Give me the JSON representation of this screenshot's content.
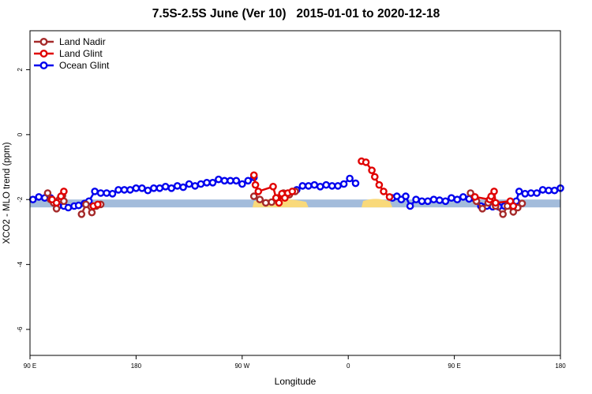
{
  "chart_data": {
    "type": "line",
    "title": "7.5S-2.5S June (Ver 10)   2015-01-01 to 2020-12-18",
    "xlabel": "Longitude",
    "ylabel": "XCO2 - MLO trend (ppm)",
    "xlim": [
      0,
      360
    ],
    "ylim": [
      -6.8,
      3.2
    ],
    "x_ticks": [
      {
        "value": 0,
        "label": "90 E"
      },
      {
        "value": 72,
        "label": "180"
      },
      {
        "value": 144,
        "label": "90 W"
      },
      {
        "value": 216,
        "label": "0"
      },
      {
        "value": 288,
        "label": "90 E"
      },
      {
        "value": 360,
        "label": "180"
      }
    ],
    "y_ticks": [
      {
        "value": 2,
        "label": "2"
      },
      {
        "value": 0,
        "label": "0"
      },
      {
        "value": -2,
        "label": "-2"
      },
      {
        "value": -4,
        "label": "-4"
      },
      {
        "value": -6,
        "label": "-6"
      }
    ],
    "legend": {
      "position": "top-left"
    },
    "surface_band": {
      "y": -2.12,
      "ocean_color": "#a3bcdb",
      "land_color": "#f9d97a",
      "land_ranges": [
        [
          151,
          189
        ],
        [
          225,
          246
        ]
      ]
    },
    "series": [
      {
        "name": "Land Nadir",
        "color": "#a52a2a",
        "segments": [
          [
            [
              12,
              -1.8
            ],
            [
              14,
              -2.0
            ],
            [
              16,
              -2.1
            ],
            [
              18,
              -2.28
            ],
            [
              20,
              -2.0
            ],
            [
              22,
              -1.88
            ],
            [
              23,
              -2.05
            ]
          ],
          [
            [
              35,
              -2.45
            ],
            [
              38,
              -2.15
            ],
            [
              42,
              -2.4
            ],
            [
              45,
              -2.2
            ],
            [
              48,
              -2.15
            ]
          ],
          [
            [
              152,
              -1.9
            ],
            [
              156,
              -2.0
            ],
            [
              160,
              -2.1
            ],
            [
              164,
              -2.08
            ],
            [
              168,
              -1.95
            ],
            [
              172,
              -1.8
            ],
            [
              176,
              -1.85
            ],
            [
              180,
              -1.75
            ]
          ],
          [
            [
              299,
              -1.8
            ],
            [
              303,
              -2.05
            ],
            [
              307,
              -2.28
            ],
            [
              311,
              -2.1
            ],
            [
              316,
              -2.2
            ],
            [
              321,
              -2.45
            ],
            [
              324,
              -2.2
            ],
            [
              328,
              -2.38
            ],
            [
              331,
              -2.25
            ],
            [
              334,
              -2.12
            ]
          ]
        ]
      },
      {
        "name": "Land Glint",
        "color": "#e00000",
        "segments": [
          [
            [
              15,
              -2.0
            ],
            [
              18,
              -2.1
            ],
            [
              21,
              -1.9
            ],
            [
              23,
              -1.75
            ]
          ],
          [
            [
              43,
              -2.2
            ],
            [
              46,
              -2.15
            ]
          ],
          [
            [
              152,
              -1.25
            ],
            [
              153,
              -1.55
            ],
            [
              155,
              -1.75
            ],
            [
              165,
              -1.6
            ],
            [
              167,
              -1.95
            ],
            [
              169,
              -2.1
            ],
            [
              171,
              -1.82
            ],
            [
              173,
              -1.95
            ],
            [
              175,
              -1.8
            ],
            [
              178,
              -1.75
            ]
          ],
          [
            [
              225,
              -0.82
            ],
            [
              228,
              -0.85
            ],
            [
              232,
              -1.1
            ],
            [
              234,
              -1.3
            ],
            [
              237,
              -1.55
            ],
            [
              240,
              -1.75
            ],
            [
              244,
              -1.92
            ]
          ],
          [
            [
              302,
              -1.92
            ],
            [
              312,
              -2.0
            ],
            [
              313,
              -1.9
            ],
            [
              315,
              -1.75
            ],
            [
              316,
              -2.1
            ],
            [
              326,
              -2.05
            ],
            [
              328,
              -2.2
            ]
          ]
        ]
      },
      {
        "name": "Ocean Glint",
        "color": "#0000ee",
        "segments": [
          [
            [
              2,
              -2.0
            ],
            [
              6,
              -1.92
            ],
            [
              10,
              -1.95
            ],
            [
              14,
              -1.95
            ],
            [
              19,
              -2.2
            ],
            [
              23,
              -2.2
            ],
            [
              26,
              -2.25
            ],
            [
              30,
              -2.2
            ],
            [
              33,
              -2.18
            ],
            [
              37,
              -2.12
            ],
            [
              40,
              -2.05
            ],
            [
              44,
              -1.75
            ],
            [
              48,
              -1.8
            ],
            [
              52,
              -1.8
            ],
            [
              56,
              -1.82
            ],
            [
              60,
              -1.7
            ],
            [
              64,
              -1.7
            ],
            [
              68,
              -1.7
            ],
            [
              72,
              -1.65
            ],
            [
              76,
              -1.65
            ],
            [
              80,
              -1.72
            ],
            [
              84,
              -1.65
            ],
            [
              88,
              -1.65
            ],
            [
              92,
              -1.6
            ],
            [
              96,
              -1.65
            ],
            [
              100,
              -1.58
            ],
            [
              104,
              -1.62
            ],
            [
              108,
              -1.52
            ],
            [
              112,
              -1.58
            ],
            [
              116,
              -1.52
            ],
            [
              120,
              -1.48
            ],
            [
              124,
              -1.48
            ],
            [
              128,
              -1.38
            ],
            [
              132,
              -1.42
            ],
            [
              136,
              -1.42
            ],
            [
              140,
              -1.42
            ],
            [
              144,
              -1.52
            ],
            [
              148,
              -1.42
            ],
            [
              152,
              -1.32
            ]
          ],
          [
            [
              181,
              -1.7
            ],
            [
              185,
              -1.58
            ],
            [
              189,
              -1.58
            ],
            [
              193,
              -1.55
            ],
            [
              197,
              -1.6
            ],
            [
              201,
              -1.55
            ],
            [
              205,
              -1.58
            ],
            [
              209,
              -1.58
            ],
            [
              213,
              -1.52
            ],
            [
              217,
              -1.35
            ],
            [
              221,
              -1.5
            ]
          ],
          [
            [
              246,
              -1.95
            ],
            [
              249,
              -1.9
            ],
            [
              252,
              -2.0
            ],
            [
              255,
              -1.9
            ],
            [
              258,
              -2.2
            ],
            [
              262,
              -2.0
            ],
            [
              266,
              -2.05
            ],
            [
              270,
              -2.05
            ],
            [
              274,
              -2.0
            ],
            [
              278,
              -2.02
            ],
            [
              282,
              -2.05
            ],
            [
              286,
              -1.95
            ],
            [
              290,
              -2.0
            ],
            [
              294,
              -1.92
            ],
            [
              298,
              -1.98
            ],
            [
              302,
              -1.98
            ],
            [
              306,
              -2.2
            ],
            [
              310,
              -2.2
            ],
            [
              314,
              -2.22
            ],
            [
              318,
              -2.22
            ],
            [
              322,
              -2.2
            ],
            [
              326,
              -2.15
            ],
            [
              330,
              -2.05
            ],
            [
              332,
              -1.75
            ],
            [
              336,
              -1.82
            ],
            [
              340,
              -1.8
            ],
            [
              344,
              -1.8
            ],
            [
              348,
              -1.7
            ],
            [
              352,
              -1.72
            ],
            [
              356,
              -1.72
            ],
            [
              360,
              -1.65
            ]
          ]
        ]
      }
    ]
  }
}
